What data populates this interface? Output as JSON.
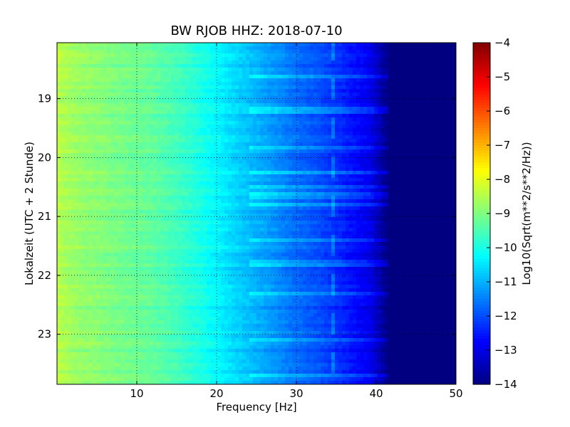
{
  "chart_data": {
    "type": "heatmap",
    "title": "BW RJOB HHZ: 2018-07-10",
    "xlabel": "Frequency [Hz]",
    "ylabel": "Lokalzeit (UTC + 2 Stunde)",
    "colorbar_label": "Log10(Sqrt(m**2/s**2/Hz))",
    "xlim": [
      0,
      50
    ],
    "ylim": [
      18.05,
      23.85
    ],
    "y_inverted": true,
    "clim": [
      -14,
      -4
    ],
    "colormap": "jet",
    "grid": true,
    "x_ticks": [
      10,
      20,
      30,
      40,
      50
    ],
    "x_tick_labels": [
      "10",
      "20",
      "30",
      "40",
      "50"
    ],
    "y_ticks": [
      19,
      20,
      21,
      22,
      23
    ],
    "y_tick_labels": [
      "19",
      "20",
      "21",
      "22",
      "23"
    ],
    "colorbar_ticks": [
      -4,
      -5,
      -6,
      -7,
      -8,
      -9,
      -10,
      -11,
      -12,
      -13,
      -14
    ],
    "colorbar_tick_labels": [
      "−4",
      "−5",
      "−6",
      "−7",
      "−8",
      "−9",
      "−10",
      "−11",
      "−12",
      "−13",
      "−14"
    ],
    "spectrum_profile": {
      "frequency_hz": [
        0,
        1,
        3,
        5,
        8,
        10,
        12,
        15,
        18,
        20,
        22,
        25,
        28,
        30,
        33,
        35,
        37,
        39,
        40,
        41,
        42,
        50
      ],
      "log10_amplitude": [
        -8.4,
        -8.6,
        -8.8,
        -8.9,
        -9.1,
        -9.2,
        -9.3,
        -9.6,
        -10.0,
        -10.3,
        -10.6,
        -11.0,
        -11.4,
        -11.7,
        -12.0,
        -12.3,
        -12.6,
        -12.9,
        -13.2,
        -13.8,
        -14.0,
        -14.0
      ]
    },
    "narrowband_line_hz": 34.5,
    "noise_band_hours": [
      18.6,
      19.2,
      19.85,
      20.25,
      20.5,
      20.65,
      20.8,
      21.4,
      21.8,
      22.3,
      23.1,
      23.7
    ]
  }
}
